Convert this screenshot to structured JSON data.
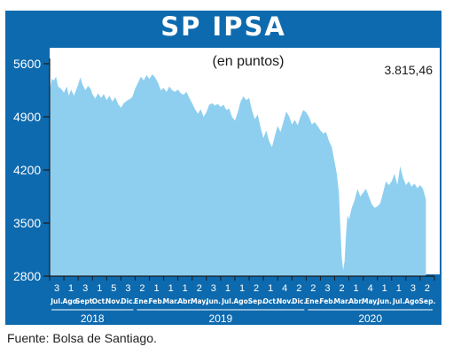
{
  "chart_data": {
    "type": "area",
    "title": "SP IPSA",
    "subtitle": "(en puntos)",
    "last_value_label": "3.815,46",
    "source": "Fuente: Bolsa de Santiago.",
    "ylim": [
      2800,
      5600
    ],
    "yticks": [
      "5600",
      "4900",
      "4200",
      "3500",
      "2800"
    ],
    "ytick_values": [
      5600,
      4900,
      4200,
      3500,
      2800
    ],
    "months": [
      {
        "day": "3",
        "label": "Jul."
      },
      {
        "day": "1",
        "label": "Ago."
      },
      {
        "day": "3",
        "label": "Sept."
      },
      {
        "day": "1",
        "label": "Oct."
      },
      {
        "day": "5",
        "label": "Nov."
      },
      {
        "day": "3",
        "label": "Dic."
      },
      {
        "day": "2",
        "label": "Ene."
      },
      {
        "day": "1",
        "label": "Feb."
      },
      {
        "day": "1",
        "label": "Mar."
      },
      {
        "day": "1",
        "label": "Abr."
      },
      {
        "day": "2",
        "label": "May."
      },
      {
        "day": "3",
        "label": "Jun."
      },
      {
        "day": "1",
        "label": "Jul."
      },
      {
        "day": "1",
        "label": "Ago."
      },
      {
        "day": "2",
        "label": "Sep."
      },
      {
        "day": "1",
        "label": "Oct."
      },
      {
        "day": "4",
        "label": "Nov."
      },
      {
        "day": "2",
        "label": "Dic."
      },
      {
        "day": "2",
        "label": "Ene."
      },
      {
        "day": "3",
        "label": "Feb."
      },
      {
        "day": "2",
        "label": "Mar."
      },
      {
        "day": "1",
        "label": "Abr."
      },
      {
        "day": "4",
        "label": "May."
      },
      {
        "day": "1",
        "label": "Jun."
      },
      {
        "day": "1",
        "label": "Jul."
      },
      {
        "day": "3",
        "label": "Ago."
      },
      {
        "day": "2",
        "label": "Sep."
      }
    ],
    "years": [
      {
        "label": "2018",
        "start": 0,
        "end": 6
      },
      {
        "label": "2019",
        "start": 6,
        "end": 18
      },
      {
        "label": "2020",
        "start": 18,
        "end": 27
      }
    ],
    "series_points": [
      [
        0.0,
        5250
      ],
      [
        0.15,
        5400
      ],
      [
        0.3,
        5380
      ],
      [
        0.45,
        5430
      ],
      [
        0.6,
        5300
      ],
      [
        0.8,
        5270
      ],
      [
        1.0,
        5220
      ],
      [
        1.2,
        5300
      ],
      [
        1.35,
        5180
      ],
      [
        1.5,
        5260
      ],
      [
        1.7,
        5180
      ],
      [
        1.85,
        5250
      ],
      [
        2.0,
        5320
      ],
      [
        2.15,
        5420
      ],
      [
        2.3,
        5330
      ],
      [
        2.5,
        5250
      ],
      [
        2.7,
        5310
      ],
      [
        2.9,
        5260
      ],
      [
        3.0,
        5200
      ],
      [
        3.2,
        5140
      ],
      [
        3.4,
        5210
      ],
      [
        3.6,
        5150
      ],
      [
        3.8,
        5200
      ],
      [
        4.0,
        5120
      ],
      [
        4.2,
        5180
      ],
      [
        4.4,
        5100
      ],
      [
        4.6,
        5160
      ],
      [
        4.8,
        5070
      ],
      [
        5.0,
        5020
      ],
      [
        5.2,
        5080
      ],
      [
        5.4,
        5110
      ],
      [
        5.6,
        5130
      ],
      [
        5.8,
        5160
      ],
      [
        6.0,
        5270
      ],
      [
        6.2,
        5350
      ],
      [
        6.4,
        5430
      ],
      [
        6.6,
        5380
      ],
      [
        6.8,
        5450
      ],
      [
        7.0,
        5400
      ],
      [
        7.2,
        5460
      ],
      [
        7.4,
        5420
      ],
      [
        7.6,
        5350
      ],
      [
        7.8,
        5250
      ],
      [
        8.0,
        5280
      ],
      [
        8.2,
        5230
      ],
      [
        8.4,
        5300
      ],
      [
        8.6,
        5250
      ],
      [
        8.8,
        5230
      ],
      [
        9.0,
        5260
      ],
      [
        9.2,
        5210
      ],
      [
        9.4,
        5190
      ],
      [
        9.6,
        5230
      ],
      [
        9.8,
        5150
      ],
      [
        10.0,
        5080
      ],
      [
        10.2,
        5000
      ],
      [
        10.4,
        4940
      ],
      [
        10.6,
        5000
      ],
      [
        10.8,
        4900
      ],
      [
        11.0,
        4960
      ],
      [
        11.2,
        5060
      ],
      [
        11.4,
        5080
      ],
      [
        11.6,
        5050
      ],
      [
        11.8,
        5070
      ],
      [
        12.0,
        5030
      ],
      [
        12.2,
        5060
      ],
      [
        12.4,
        4990
      ],
      [
        12.6,
        5010
      ],
      [
        12.8,
        4900
      ],
      [
        13.0,
        4850
      ],
      [
        13.2,
        4960
      ],
      [
        13.4,
        5100
      ],
      [
        13.6,
        5170
      ],
      [
        13.8,
        5120
      ],
      [
        14.0,
        5150
      ],
      [
        14.2,
        4980
      ],
      [
        14.4,
        4870
      ],
      [
        14.6,
        4930
      ],
      [
        14.8,
        4760
      ],
      [
        15.0,
        4620
      ],
      [
        15.2,
        4720
      ],
      [
        15.4,
        4580
      ],
      [
        15.6,
        4500
      ],
      [
        15.8,
        4650
      ],
      [
        16.0,
        4780
      ],
      [
        16.2,
        4700
      ],
      [
        16.4,
        4830
      ],
      [
        16.6,
        4970
      ],
      [
        16.8,
        4910
      ],
      [
        17.0,
        4800
      ],
      [
        17.2,
        4860
      ],
      [
        17.4,
        4790
      ],
      [
        17.6,
        4900
      ],
      [
        17.8,
        4990
      ],
      [
        18.0,
        4960
      ],
      [
        18.2,
        4900
      ],
      [
        18.4,
        4800
      ],
      [
        18.6,
        4830
      ],
      [
        18.8,
        4780
      ],
      [
        19.0,
        4720
      ],
      [
        19.2,
        4680
      ],
      [
        19.4,
        4700
      ],
      [
        19.6,
        4580
      ],
      [
        19.8,
        4500
      ],
      [
        20.0,
        4300
      ],
      [
        20.15,
        4150
      ],
      [
        20.3,
        3900
      ],
      [
        20.4,
        3450
      ],
      [
        20.5,
        3050
      ],
      [
        20.6,
        2880
      ],
      [
        20.7,
        3000
      ],
      [
        20.8,
        3350
      ],
      [
        20.9,
        3600
      ],
      [
        21.0,
        3550
      ],
      [
        21.2,
        3700
      ],
      [
        21.4,
        3800
      ],
      [
        21.6,
        3950
      ],
      [
        21.8,
        3850
      ],
      [
        22.0,
        3900
      ],
      [
        22.2,
        3950
      ],
      [
        22.4,
        3850
      ],
      [
        22.6,
        3750
      ],
      [
        22.8,
        3700
      ],
      [
        23.0,
        3720
      ],
      [
        23.2,
        3760
      ],
      [
        23.4,
        3900
      ],
      [
        23.6,
        4050
      ],
      [
        23.8,
        4000
      ],
      [
        24.0,
        4050
      ],
      [
        24.2,
        4150
      ],
      [
        24.4,
        4000
      ],
      [
        24.6,
        4250
      ],
      [
        24.8,
        4100
      ],
      [
        25.0,
        4000
      ],
      [
        25.2,
        4050
      ],
      [
        25.4,
        3980
      ],
      [
        25.6,
        4020
      ],
      [
        25.8,
        3960
      ],
      [
        26.0,
        4000
      ],
      [
        26.2,
        3950
      ],
      [
        26.4,
        3815
      ]
    ],
    "colors": {
      "title_bg": "#0E6AAE",
      "frame_bg": "#0E6AAE",
      "plot_bg": "#ffffff",
      "area_fill": "#8ECFF0",
      "axis": "#1a1a1a",
      "label_text": "#ffffff"
    }
  }
}
